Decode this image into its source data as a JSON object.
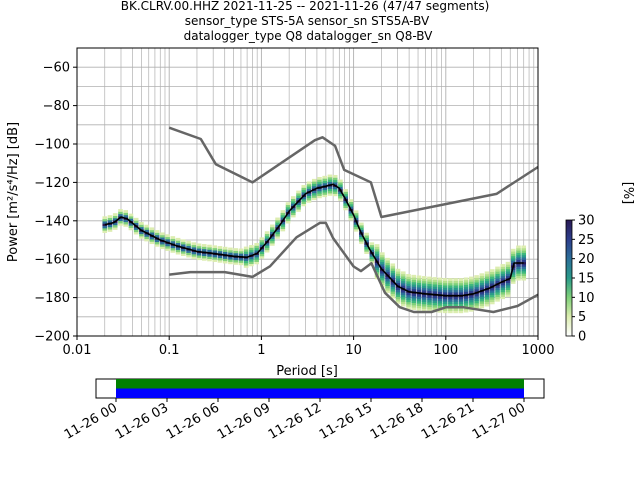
{
  "title_lines": [
    "BK.CLRV.00.HHZ   2021-11-25 -- 2021-11-26  (47/47 segments)",
    "sensor_type STS-5A sensor_sn STS5A-BV",
    "datalogger_type Q8 datalogger_sn Q8-BV"
  ],
  "colorbar": {
    "label": "[%]",
    "ticks": [
      "0",
      "5",
      "10",
      "15",
      "20",
      "25",
      "30"
    ],
    "range": [
      0,
      30
    ]
  },
  "timeline": {
    "tick_labels": [
      "11-26 00",
      "11-26 03",
      "11-26 06",
      "11-26 09",
      "11-26 12",
      "11-26 15",
      "11-26 18",
      "11-26 21",
      "11-27 00"
    ],
    "bar_colors": [
      "#008000",
      "#0000ff"
    ]
  },
  "colors": {
    "model": "#666666",
    "mean": "#000000",
    "grid": "#b0b0b0"
  },
  "chart_data": {
    "type": "line",
    "title": "BK.CLRV.00.HHZ   2021-11-25 -- 2021-11-26  (47/47 segments)",
    "xlabel": "Period [s]",
    "ylabel": "Power [m²/s⁴/Hz] [dB]",
    "xscale": "log",
    "xlim": [
      0.01,
      1000
    ],
    "ylim": [
      -200,
      -50
    ],
    "xticks": [
      "0.01",
      "0.1",
      "1",
      "10",
      "100",
      "1000"
    ],
    "yticks": [
      "−60",
      "−80",
      "−100",
      "−120",
      "−140",
      "−160",
      "−180",
      "−200"
    ],
    "grid": true,
    "series": [
      {
        "name": "",
        "role": "high-noise-model",
        "x": [
          0.1,
          0.22,
          0.32,
          0.8,
          3.8,
          4.6,
          6.3,
          7.9,
          15.4,
          20,
          354.8,
          1000
        ],
        "y": [
          -91.5,
          -97.4,
          -110.5,
          -120,
          -98,
          -96.5,
          -101,
          -113.5,
          -120,
          -138,
          -126,
          -112
        ]
      },
      {
        "name": "",
        "role": "low-noise-model",
        "x": [
          0.1,
          0.17,
          0.4,
          0.8,
          1.24,
          2.4,
          4.3,
          5,
          6,
          10,
          12,
          15.6,
          21.9,
          31.6,
          45,
          70,
          101,
          154,
          328,
          600,
          1000
        ],
        "y": [
          -168,
          -166.7,
          -166.7,
          -169.2,
          -163.7,
          -148.6,
          -141.1,
          -141.1,
          -149,
          -163.8,
          -166.2,
          -162.1,
          -177.5,
          -185,
          -187.5,
          -187.5,
          -185,
          -185,
          -187.5,
          -184.4,
          -178.5
        ]
      },
      {
        "name": "",
        "role": "mode",
        "x": [
          0.02,
          0.025,
          0.03,
          0.035,
          0.05,
          0.08,
          0.12,
          0.2,
          0.3,
          0.5,
          0.7,
          0.9,
          1.2,
          1.6,
          2,
          3,
          4,
          5,
          6,
          7,
          8,
          10,
          12,
          15,
          20,
          30,
          40,
          60,
          100,
          150,
          200,
          300,
          400,
          500,
          550,
          600,
          700
        ],
        "y": [
          -142,
          -141,
          -138,
          -139,
          -145,
          -150,
          -153,
          -156,
          -157,
          -158.5,
          -159,
          -157,
          -150,
          -142,
          -135,
          -126,
          -123,
          -122,
          -121,
          -123,
          -128,
          -137,
          -146,
          -155,
          -165,
          -174,
          -177,
          -178,
          -179,
          -179,
          -178,
          -175,
          -172,
          -170,
          -162,
          -162,
          -162
        ]
      }
    ],
    "density_range_percent": [
      0,
      30
    ]
  }
}
